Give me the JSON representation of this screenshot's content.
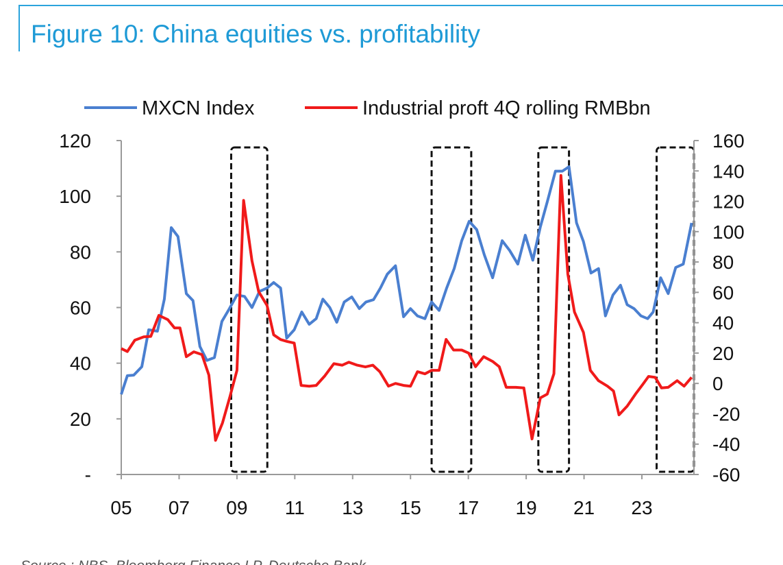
{
  "chart_data": {
    "type": "line",
    "title": "Figure 10: China equities vs. profitability",
    "source": "Source : NBS, Bloomberg Finance LP, Deutsche Bank",
    "xlim": [
      2005,
      2024.8
    ],
    "xticks": [
      {
        "value": 2005,
        "label": "05"
      },
      {
        "value": 2007,
        "label": "07"
      },
      {
        "value": 2009,
        "label": "09"
      },
      {
        "value": 2011,
        "label": "11"
      },
      {
        "value": 2013,
        "label": "13"
      },
      {
        "value": 2015,
        "label": "15"
      },
      {
        "value": 2017,
        "label": "17"
      },
      {
        "value": 2019,
        "label": "19"
      },
      {
        "value": 2021,
        "label": "21"
      },
      {
        "value": 2023,
        "label": "23"
      }
    ],
    "ylim": [
      0,
      120
    ],
    "yticks": [
      {
        "value": 0,
        "label": "-"
      },
      20,
      40,
      60,
      80,
      100,
      120
    ],
    "y2lim": [
      -60,
      160
    ],
    "y2ticks": [
      -60,
      -40,
      -20,
      0,
      20,
      40,
      60,
      80,
      100,
      120,
      140,
      160
    ],
    "legend": "top",
    "highlight_ranges": [
      [
        2008.8,
        2010.05
      ],
      [
        2015.73,
        2017.1
      ],
      [
        2019.42,
        2020.48
      ],
      [
        2023.51,
        2024.8
      ]
    ],
    "series": [
      {
        "name": "MXCN Index",
        "color": "#4a7fd0",
        "axis": "y",
        "x": [
          2005,
          2005.21,
          2005.43,
          2005.71,
          2005.95,
          2006.25,
          2006.49,
          2006.73,
          2006.96,
          2007.25,
          2007.48,
          2007.72,
          2007.96,
          2008.22,
          2008.48,
          2008.74,
          2009,
          2009.26,
          2009.52,
          2009.78,
          2010.04,
          2010.27,
          2010.51,
          2010.72,
          2010.98,
          2011.24,
          2011.5,
          2011.74,
          2011.97,
          2012.21,
          2012.45,
          2012.71,
          2012.97,
          2013.23,
          2013.46,
          2013.72,
          2013.96,
          2014.2,
          2014.48,
          2014.76,
          2015,
          2015.24,
          2015.5,
          2015.73,
          2015.99,
          2016.25,
          2016.51,
          2016.77,
          2017.03,
          2017.29,
          2017.55,
          2017.84,
          2018.17,
          2018.43,
          2018.71,
          2018.97,
          2019.23,
          2019.49,
          2019.73,
          2020.01,
          2020.25,
          2020.48,
          2020.74,
          2020.98,
          2021.24,
          2021.5,
          2021.74,
          2022,
          2022.26,
          2022.49,
          2022.73,
          2022.97,
          2023.2,
          2023.39,
          2023.65,
          2023.91,
          2024.17,
          2024.43,
          2024.72
        ],
        "values": [
          28.8,
          35.5,
          35.7,
          38.7,
          52,
          51.5,
          63,
          88.7,
          85.5,
          65,
          62.5,
          46,
          41,
          42,
          55,
          59.6,
          64.5,
          64,
          60,
          65.8,
          67,
          69,
          67,
          49,
          52,
          58.4,
          54,
          56,
          63,
          60,
          54.7,
          62,
          63.8,
          59.6,
          62,
          62.8,
          67,
          72,
          75,
          56.7,
          59.6,
          57,
          56,
          62,
          59,
          67,
          74,
          84,
          91,
          88,
          79,
          70.7,
          84,
          80.5,
          75.6,
          86,
          77,
          89,
          98,
          109,
          109,
          110.6,
          90.4,
          83.7,
          72.4,
          74,
          57,
          64.5,
          68,
          61,
          59.6,
          57,
          56,
          58.4,
          70.7,
          65,
          74.4,
          75.6,
          90.4
        ]
      },
      {
        "name": "Industrial proft 4Q rolling RMBbn",
        "color": "#f01a1a",
        "axis": "y2",
        "x": [
          2005,
          2005.21,
          2005.47,
          2005.78,
          2006.02,
          2006.3,
          2006.61,
          2006.84,
          2007.03,
          2007.25,
          2007.51,
          2007.79,
          2008.03,
          2008.26,
          2008.5,
          2008.76,
          2009,
          2009.23,
          2009.52,
          2009.75,
          2010.04,
          2010.27,
          2010.51,
          2010.74,
          2010.98,
          2011.22,
          2011.5,
          2011.74,
          2012.04,
          2012.35,
          2012.64,
          2012.87,
          2013.16,
          2013.44,
          2013.7,
          2013.94,
          2014.24,
          2014.48,
          2014.76,
          2015,
          2015.24,
          2015.5,
          2015.73,
          2015.99,
          2016.23,
          2016.49,
          2016.77,
          2017.01,
          2017.25,
          2017.53,
          2017.84,
          2018.07,
          2018.31,
          2018.64,
          2018.92,
          2019.2,
          2019.49,
          2019.73,
          2019.96,
          2020.2,
          2020.44,
          2020.67,
          2020.98,
          2021.22,
          2021.5,
          2021.81,
          2022.02,
          2022.21,
          2022.49,
          2022.78,
          2023.04,
          2023.23,
          2023.46,
          2023.68,
          2023.91,
          2024.22,
          2024.46,
          2024.72
        ],
        "values": [
          23,
          21,
          28.5,
          30.7,
          31,
          44.8,
          42,
          36.6,
          36.6,
          17.6,
          20.8,
          19,
          5.5,
          -37.5,
          -26,
          -8.5,
          8.6,
          120.6,
          80.8,
          60.5,
          51.4,
          32,
          28.9,
          27.6,
          26.6,
          -1.3,
          -1.8,
          -1.3,
          5,
          13,
          12,
          14,
          12,
          10.9,
          12,
          7.7,
          -1.8,
          0,
          -1.3,
          -1.8,
          7.7,
          6.3,
          8.6,
          8.6,
          29,
          22,
          22,
          20,
          11,
          17.6,
          14.5,
          11,
          -2.6,
          -2.6,
          -3,
          -36.6,
          -9.5,
          -7,
          6.4,
          137,
          72,
          47,
          33.6,
          8.6,
          1.8,
          -1.8,
          -5,
          -20.7,
          -15,
          -7,
          -0.4,
          4.6,
          4,
          -3,
          -2.6,
          1.8,
          -1.8,
          4
        ]
      }
    ]
  }
}
